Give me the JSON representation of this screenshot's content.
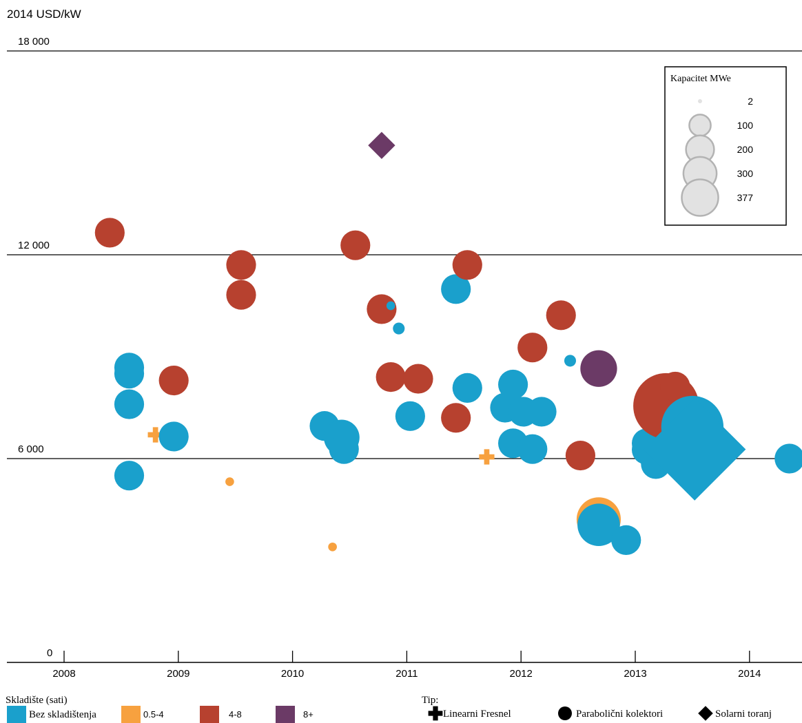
{
  "chart_data": {
    "type": "scatter",
    "ylabel": "2014 USD/kW",
    "ylim": [
      0,
      18000
    ],
    "xlim": [
      2008,
      2014.5
    ],
    "y_ticks": [
      {
        "value": 0,
        "label": "0"
      },
      {
        "value": 6000,
        "label": "6 000"
      },
      {
        "value": 12000,
        "label": "12 000"
      },
      {
        "value": 18000,
        "label": "18 000"
      }
    ],
    "x_ticks": [
      {
        "value": 2008,
        "label": "2008"
      },
      {
        "value": 2009,
        "label": "2009"
      },
      {
        "value": 2010,
        "label": "2010"
      },
      {
        "value": 2011,
        "label": "2011"
      },
      {
        "value": 2012,
        "label": "2012"
      },
      {
        "value": 2013,
        "label": "2013"
      },
      {
        "value": 2014,
        "label": "2014"
      }
    ],
    "grid": true,
    "colors": {
      "none": "#1aa0cc",
      "s05_4": "#f7a13f",
      "s4_8": "#b7412f",
      "s8plus": "#6b3a66",
      "legend_bubble": "#c8c8c8"
    },
    "size_legend": {
      "title": "Kapacitet MWe",
      "items": [
        {
          "value": 2,
          "label": "2"
        },
        {
          "value": 100,
          "label": "100"
        },
        {
          "value": 200,
          "label": "200"
        },
        {
          "value": 300,
          "label": "300"
        },
        {
          "value": 377,
          "label": "377"
        }
      ]
    },
    "storage_legend": {
      "title": "Skladište (sati)",
      "items": [
        {
          "key": "none",
          "label": "Bez skladištenja"
        },
        {
          "key": "s05_4",
          "label": "0.5-4"
        },
        {
          "key": "s4_8",
          "label": "4-8"
        },
        {
          "key": "s8plus",
          "label": "8+"
        }
      ]
    },
    "type_legend": {
      "title": "Tip:",
      "items": [
        {
          "shape": "plus",
          "label": "Linearni Fresnel"
        },
        {
          "shape": "circle",
          "label": "Parabolični kolektori"
        },
        {
          "shape": "diamond",
          "label": "Solarni toranj"
        }
      ]
    },
    "points": [
      {
        "x": 2008.4,
        "y": 12650,
        "storage": "s4_8",
        "type": "circle",
        "mw": 50
      },
      {
        "x": 2008.57,
        "y": 8680,
        "storage": "none",
        "type": "circle",
        "mw": 50
      },
      {
        "x": 2008.57,
        "y": 8500,
        "storage": "none",
        "type": "circle",
        "mw": 50
      },
      {
        "x": 2008.57,
        "y": 7600,
        "storage": "none",
        "type": "circle",
        "mw": 50
      },
      {
        "x": 2008.57,
        "y": 5500,
        "storage": "none",
        "type": "circle",
        "mw": 50
      },
      {
        "x": 2008.8,
        "y": 6700,
        "storage": "s05_4",
        "type": "plus",
        "mw": 5
      },
      {
        "x": 2008.96,
        "y": 8300,
        "storage": "s4_8",
        "type": "circle",
        "mw": 50
      },
      {
        "x": 2008.96,
        "y": 6650,
        "storage": "none",
        "type": "circle",
        "mw": 50
      },
      {
        "x": 2009.45,
        "y": 5320,
        "storage": "s05_4",
        "type": "circle",
        "mw": 2
      },
      {
        "x": 2009.55,
        "y": 11700,
        "storage": "s4_8",
        "type": "circle",
        "mw": 50
      },
      {
        "x": 2009.55,
        "y": 10820,
        "storage": "s4_8",
        "type": "circle",
        "mw": 50
      },
      {
        "x": 2010.28,
        "y": 6960,
        "storage": "none",
        "type": "circle",
        "mw": 50
      },
      {
        "x": 2010.35,
        "y": 3400,
        "storage": "s05_4",
        "type": "circle",
        "mw": 2
      },
      {
        "x": 2010.43,
        "y": 6620,
        "storage": "none",
        "type": "circle",
        "mw": 75
      },
      {
        "x": 2010.45,
        "y": 6280,
        "storage": "none",
        "type": "circle",
        "mw": 50
      },
      {
        "x": 2010.55,
        "y": 12280,
        "storage": "s4_8",
        "type": "circle",
        "mw": 50
      },
      {
        "x": 2010.78,
        "y": 15220,
        "storage": "s8plus",
        "type": "diamond",
        "mw": 20
      },
      {
        "x": 2010.78,
        "y": 10400,
        "storage": "s4_8",
        "type": "circle",
        "mw": 50
      },
      {
        "x": 2010.86,
        "y": 10500,
        "storage": "none",
        "type": "circle",
        "mw": 2
      },
      {
        "x": 2010.86,
        "y": 8400,
        "storage": "s4_8",
        "type": "circle",
        "mw": 50
      },
      {
        "x": 2010.93,
        "y": 9830,
        "storage": "none",
        "type": "circle",
        "mw": 5
      },
      {
        "x": 2011.03,
        "y": 7250,
        "storage": "none",
        "type": "circle",
        "mw": 50
      },
      {
        "x": 2011.1,
        "y": 8350,
        "storage": "s4_8",
        "type": "circle",
        "mw": 50
      },
      {
        "x": 2011.43,
        "y": 7200,
        "storage": "s4_8",
        "type": "circle",
        "mw": 50
      },
      {
        "x": 2011.43,
        "y": 10990,
        "storage": "none",
        "type": "circle",
        "mw": 50
      },
      {
        "x": 2011.53,
        "y": 11700,
        "storage": "s4_8",
        "type": "circle",
        "mw": 50
      },
      {
        "x": 2011.53,
        "y": 8080,
        "storage": "none",
        "type": "circle",
        "mw": 50
      },
      {
        "x": 2011.7,
        "y": 6050,
        "storage": "s05_4",
        "type": "plus",
        "mw": 5
      },
      {
        "x": 2011.86,
        "y": 7500,
        "storage": "none",
        "type": "circle",
        "mw": 50
      },
      {
        "x": 2011.93,
        "y": 8180,
        "storage": "none",
        "type": "circle",
        "mw": 50
      },
      {
        "x": 2011.93,
        "y": 6450,
        "storage": "none",
        "type": "circle",
        "mw": 50
      },
      {
        "x": 2012.02,
        "y": 7380,
        "storage": "none",
        "type": "circle",
        "mw": 50
      },
      {
        "x": 2012.1,
        "y": 9270,
        "storage": "s4_8",
        "type": "circle",
        "mw": 50
      },
      {
        "x": 2012.1,
        "y": 6280,
        "storage": "none",
        "type": "circle",
        "mw": 50
      },
      {
        "x": 2012.18,
        "y": 7380,
        "storage": "none",
        "type": "circle",
        "mw": 50
      },
      {
        "x": 2012.35,
        "y": 10220,
        "storage": "s4_8",
        "type": "circle",
        "mw": 50
      },
      {
        "x": 2012.43,
        "y": 8880,
        "storage": "none",
        "type": "circle",
        "mw": 5
      },
      {
        "x": 2012.52,
        "y": 6090,
        "storage": "s4_8",
        "type": "circle",
        "mw": 50
      },
      {
        "x": 2012.68,
        "y": 8650,
        "storage": "s8plus",
        "type": "circle",
        "mw": 80
      },
      {
        "x": 2012.68,
        "y": 4210,
        "storage": "s05_4",
        "type": "circle",
        "mw": 120
      },
      {
        "x": 2012.68,
        "y": 4050,
        "storage": "none",
        "type": "circle",
        "mw": 110
      },
      {
        "x": 2012.92,
        "y": 3600,
        "storage": "none",
        "type": "circle",
        "mw": 50
      },
      {
        "x": 2013.1,
        "y": 6450,
        "storage": "none",
        "type": "circle",
        "mw": 50
      },
      {
        "x": 2013.1,
        "y": 6260,
        "storage": "none",
        "type": "circle",
        "mw": 50
      },
      {
        "x": 2013.18,
        "y": 5840,
        "storage": "none",
        "type": "circle",
        "mw": 50
      },
      {
        "x": 2013.27,
        "y": 7550,
        "storage": "s4_8",
        "type": "circle",
        "mw": 280
      },
      {
        "x": 2013.35,
        "y": 8120,
        "storage": "s4_8",
        "type": "circle",
        "mw": 50
      },
      {
        "x": 2013.5,
        "y": 7250,
        "storage": "s8plus",
        "type": "circle",
        "mw": 20
      },
      {
        "x": 2013.5,
        "y": 6930,
        "storage": "none",
        "type": "circle",
        "mw": 250
      },
      {
        "x": 2013.52,
        "y": 6270,
        "storage": "none",
        "type": "diamond",
        "mw": 377
      },
      {
        "x": 2014.35,
        "y": 6000,
        "storage": "none",
        "type": "circle",
        "mw": 50
      }
    ]
  }
}
